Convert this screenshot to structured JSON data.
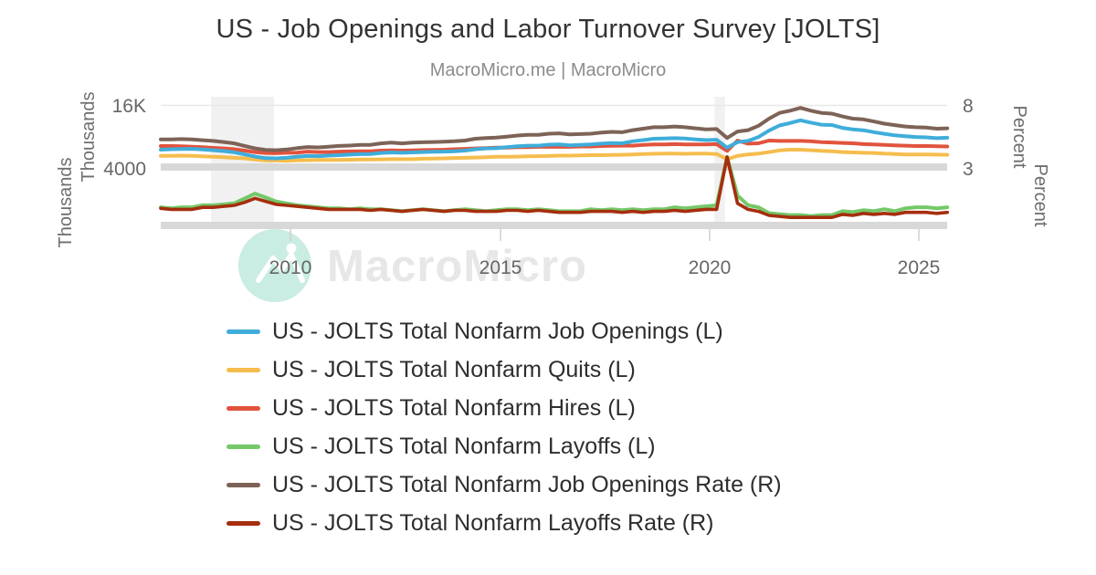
{
  "header": {
    "title": "US - Job Openings and Labor Turnover Survey [JOLTS]",
    "subtitle": "MacroMicro.me | MacroMicro"
  },
  "watermark": {
    "brand": "MacroMicro",
    "icon": "macromicro-mountain-logo",
    "circle_color": "#c9ece3",
    "text_color": "#e7e7e7"
  },
  "chart_data": {
    "type": "line",
    "title": "US - Job Openings and Labor Turnover Survey [JOLTS]",
    "x_start": 2006.9,
    "x_step": 0.25,
    "x_ticks": [
      "2010",
      "2015",
      "2020",
      "2025"
    ],
    "x_tick_years": [
      2010,
      2015,
      2020,
      2025
    ],
    "grid": "horizontal-only",
    "legend_position": "bottom-left",
    "recession_bands": [
      [
        2008.1,
        2009.6
      ],
      [
        2020.1,
        2020.35
      ]
    ],
    "panes": [
      {
        "left_axis": {
          "title": "Thousands",
          "ticks": [
            "16K",
            "4000"
          ],
          "range": [
            0,
            16000
          ]
        },
        "right_axis": {
          "title": "Percent",
          "ticks": [
            "8",
            "3"
          ],
          "range": [
            0,
            8
          ]
        }
      },
      {
        "left_axis": {
          "title": "Thousands",
          "ticks": [],
          "range": [
            0,
            3000
          ]
        },
        "right_axis": {
          "title": "Percent",
          "ticks": [],
          "range": [
            0,
            3
          ]
        }
      }
    ],
    "draw_order": [
      1,
      2,
      0,
      4,
      3,
      5
    ],
    "series": [
      {
        "name": "US - JOLTS Total Nonfarm Job Openings (L)",
        "color": "#3fadda",
        "pane": 0,
        "axis": "L",
        "unit": "thousands",
        "values": [
          4500,
          4600,
          4650,
          4700,
          4550,
          4350,
          4150,
          3850,
          3300,
          2750,
          2350,
          2300,
          2450,
          2700,
          2900,
          2850,
          3000,
          3100,
          3250,
          3350,
          3400,
          3650,
          3800,
          3700,
          3800,
          3900,
          3950,
          4000,
          4100,
          4250,
          4600,
          4800,
          4850,
          5100,
          5350,
          5500,
          5500,
          5750,
          5800,
          5600,
          5700,
          5800,
          6000,
          6150,
          6100,
          6600,
          6900,
          7250,
          7300,
          7400,
          7300,
          7100,
          6900,
          7000,
          5000,
          6400,
          6700,
          7700,
          9300,
          10600,
          11200,
          11900,
          11300,
          10800,
          10700,
          10000,
          9600,
          9400,
          8900,
          8500,
          8100,
          7900,
          7700,
          7600,
          7400,
          7500
        ]
      },
      {
        "name": "US - JOLTS Total Nonfarm Quits (L)",
        "color": "#f5bd4d",
        "pane": 0,
        "axis": "L",
        "unit": "thousands",
        "values": [
          2950,
          2950,
          3000,
          2950,
          2800,
          2700,
          2600,
          2450,
          2300,
          2000,
          1800,
          1750,
          1700,
          1800,
          1850,
          1900,
          1900,
          1900,
          1950,
          2000,
          2000,
          2050,
          2100,
          2100,
          2100,
          2200,
          2250,
          2300,
          2400,
          2450,
          2500,
          2600,
          2700,
          2700,
          2750,
          2800,
          2850,
          2900,
          3000,
          3000,
          3050,
          3100,
          3100,
          3150,
          3200,
          3300,
          3400,
          3450,
          3500,
          3500,
          3450,
          3500,
          3500,
          3400,
          2100,
          2900,
          3300,
          3500,
          3900,
          4300,
          4500,
          4500,
          4350,
          4200,
          4100,
          3900,
          3800,
          3700,
          3650,
          3500,
          3400,
          3300,
          3300,
          3300,
          3250,
          3200
        ]
      },
      {
        "name": "US - JOLTS Total Nonfarm Hires (L)",
        "color": "#e2533d",
        "pane": 0,
        "axis": "L",
        "unit": "thousands",
        "values": [
          5400,
          5400,
          5350,
          5250,
          5100,
          4950,
          4800,
          4600,
          4250,
          3900,
          3650,
          3600,
          3700,
          3750,
          4000,
          3900,
          3900,
          4000,
          4050,
          4100,
          4100,
          4250,
          4300,
          4250,
          4300,
          4400,
          4450,
          4500,
          4600,
          4700,
          4800,
          4900,
          5000,
          5000,
          5100,
          5100,
          5200,
          5250,
          5200,
          5200,
          5300,
          5300,
          5400,
          5450,
          5500,
          5500,
          5700,
          5800,
          5800,
          5900,
          5800,
          5800,
          5800,
          5900,
          4200,
          6800,
          6000,
          6100,
          6800,
          6700,
          6700,
          6700,
          6600,
          6400,
          6300,
          6200,
          6100,
          5900,
          5800,
          5700,
          5600,
          5500,
          5400,
          5400,
          5350,
          5300
        ]
      },
      {
        "name": "US - JOLTS Total Nonfarm Layoffs (L)",
        "color": "#74c868",
        "pane": 1,
        "axis": "L",
        "unit": "thousands",
        "values": [
          1800,
          1750,
          1800,
          1800,
          1900,
          1900,
          1950,
          2000,
          2250,
          2500,
          2300,
          2100,
          2000,
          1900,
          1850,
          1800,
          1750,
          1750,
          1700,
          1750,
          1700,
          1700,
          1650,
          1600,
          1650,
          1700,
          1650,
          1600,
          1650,
          1700,
          1650,
          1600,
          1650,
          1700,
          1700,
          1650,
          1700,
          1650,
          1600,
          1600,
          1600,
          1700,
          1650,
          1700,
          1650,
          1700,
          1650,
          1700,
          1700,
          1800,
          1750,
          1800,
          1850,
          1900,
          13000,
          2400,
          1900,
          1800,
          1500,
          1450,
          1400,
          1400,
          1350,
          1400,
          1400,
          1600,
          1550,
          1650,
          1600,
          1700,
          1600,
          1750,
          1800,
          1800,
          1750,
          1800
        ]
      },
      {
        "name": "US - JOLTS Total Nonfarm Job Openings Rate (R)",
        "color": "#7d6357",
        "pane": 0,
        "axis": "R",
        "unit": "percent",
        "values": [
          3.2,
          3.2,
          3.25,
          3.2,
          3.1,
          3.0,
          2.85,
          2.65,
          2.3,
          1.95,
          1.75,
          1.7,
          1.8,
          2.0,
          2.15,
          2.1,
          2.2,
          2.3,
          2.35,
          2.45,
          2.45,
          2.65,
          2.75,
          2.65,
          2.75,
          2.8,
          2.85,
          2.9,
          2.95,
          3.05,
          3.3,
          3.4,
          3.45,
          3.6,
          3.75,
          3.85,
          3.85,
          4.0,
          4.05,
          3.9,
          3.95,
          4.0,
          4.15,
          4.25,
          4.2,
          4.5,
          4.7,
          4.9,
          4.9,
          5.0,
          4.9,
          4.75,
          4.6,
          4.65,
          3.4,
          4.3,
          4.5,
          5.1,
          6.1,
          6.9,
          7.2,
          7.6,
          7.2,
          6.9,
          6.8,
          6.4,
          6.1,
          6.0,
          5.7,
          5.4,
          5.2,
          5.0,
          4.9,
          4.85,
          4.7,
          4.75
        ]
      },
      {
        "name": "US - JOLTS Total Nonfarm Layoffs Rate (R)",
        "color": "#a52e0d",
        "pane": 1,
        "axis": "R",
        "unit": "percent",
        "values": [
          1.35,
          1.3,
          1.3,
          1.3,
          1.4,
          1.4,
          1.45,
          1.5,
          1.65,
          1.85,
          1.7,
          1.55,
          1.5,
          1.45,
          1.4,
          1.35,
          1.3,
          1.3,
          1.3,
          1.3,
          1.25,
          1.3,
          1.25,
          1.2,
          1.25,
          1.3,
          1.25,
          1.2,
          1.25,
          1.25,
          1.2,
          1.2,
          1.2,
          1.25,
          1.25,
          1.2,
          1.25,
          1.2,
          1.15,
          1.15,
          1.15,
          1.2,
          1.2,
          1.2,
          1.15,
          1.2,
          1.15,
          1.2,
          1.2,
          1.25,
          1.2,
          1.25,
          1.3,
          1.3,
          9.0,
          1.6,
          1.3,
          1.2,
          1.0,
          0.95,
          0.9,
          0.9,
          0.9,
          0.9,
          0.9,
          1.05,
          1.0,
          1.1,
          1.05,
          1.1,
          1.05,
          1.15,
          1.15,
          1.15,
          1.1,
          1.15
        ]
      }
    ]
  }
}
